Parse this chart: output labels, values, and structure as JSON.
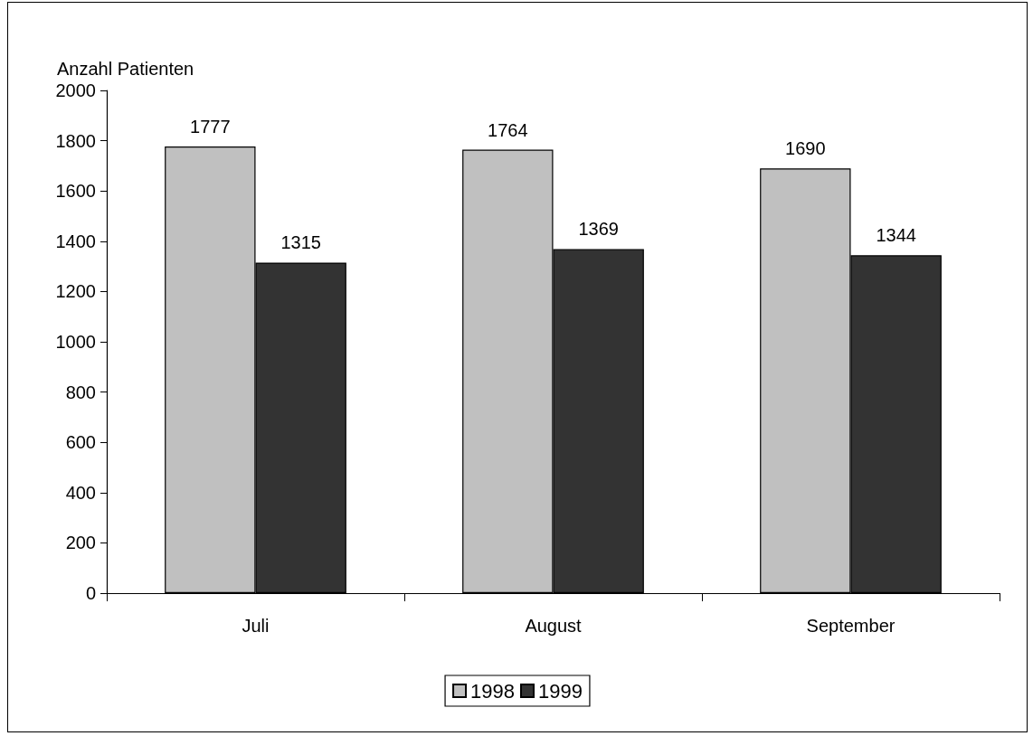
{
  "chart_data": {
    "type": "bar",
    "ylabel": "Anzahl Patienten",
    "categories": [
      "Juli",
      "August",
      "September"
    ],
    "series": [
      {
        "name": "1998",
        "color": "#c0c0c0",
        "values": [
          1777,
          1764,
          1690
        ]
      },
      {
        "name": "1999",
        "color": "#333333",
        "values": [
          1315,
          1369,
          1344
        ]
      }
    ],
    "ylim": [
      0,
      2000
    ],
    "yticks": [
      0,
      200,
      400,
      600,
      800,
      1000,
      1200,
      1400,
      1600,
      1800,
      2000
    ],
    "data_labels": true,
    "grid": false,
    "legend": "bottom"
  }
}
